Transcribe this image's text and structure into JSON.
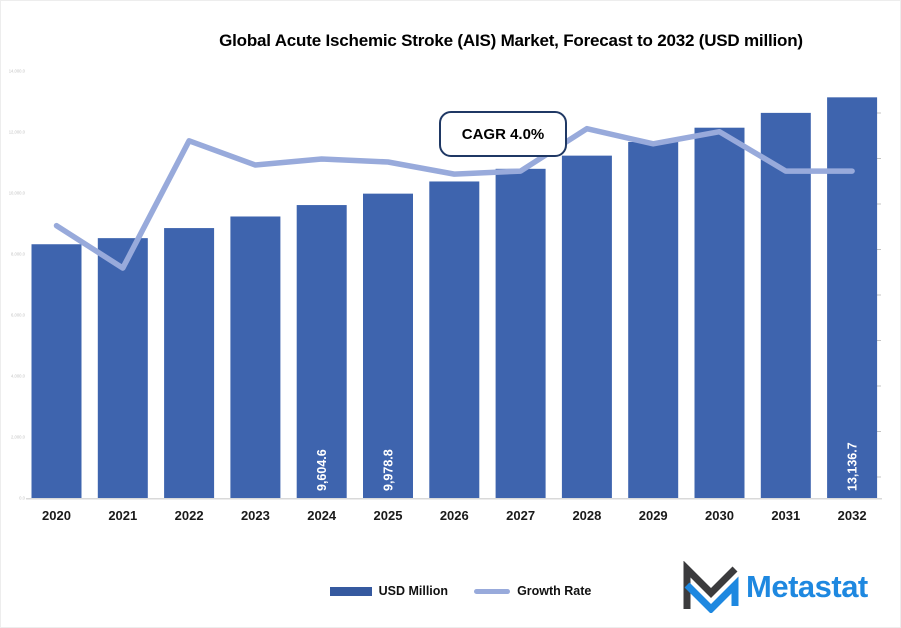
{
  "chart": {
    "title": "Global Acute Ischemic Stroke (AIS) Market, Forecast to 2032 (USD million)",
    "annotation": "CAGR 4.0%"
  },
  "legend": {
    "items": [
      {
        "label": "USD Million",
        "swatch": "bar"
      },
      {
        "label": "Growth Rate",
        "swatch": "line"
      }
    ]
  },
  "branding": {
    "logo_text": "Metastat",
    "logo_icon": "metastat-m-chevrons-icon"
  },
  "colors": {
    "bar": "#3E64AE",
    "line": "#98AADB",
    "legend_bar": "#35599F",
    "annotation_border": "#1F3864",
    "axis_label": "#1a1a1a",
    "faint_axis": "#c4c4c4",
    "baseline": "#d9d9d9",
    "bar_label_text": "#ffffff",
    "logo_blue": "#1E88E0",
    "logo_dark": "#3B3B3D"
  },
  "chart_data": {
    "type": "bar",
    "combo": "bar+line",
    "title": "Global Acute Ischemic Stroke (AIS) Market, Forecast to 2032 (USD million)",
    "annotation": "CAGR 4.0%",
    "categories": [
      "2020",
      "2021",
      "2022",
      "2023",
      "2024",
      "2025",
      "2026",
      "2027",
      "2028",
      "2029",
      "2030",
      "2031",
      "2032"
    ],
    "series": [
      {
        "name": "USD Million",
        "type": "bar",
        "values": [
          8320,
          8520,
          8850,
          9230,
          9604.6,
          9978.8,
          10378,
          10793,
          11225,
          11674,
          12141,
          12627,
          13136.7
        ]
      },
      {
        "name": "Growth Rate",
        "type": "line",
        "unit": "%",
        "values": [
          3.1,
          2.4,
          4.5,
          4.1,
          4.2,
          4.15,
          3.95,
          4.0,
          4.7,
          4.45,
          4.65,
          4.0,
          4.0
        ]
      }
    ],
    "bar_value_labels": [
      "",
      "",
      "",
      "",
      "9,604.6",
      "9,978.8",
      "",
      "",
      "",
      "",
      "",
      "",
      "13,136.7"
    ],
    "xlabel": "",
    "ylabel": "",
    "y_axis": {
      "min": 0,
      "max": 14000,
      "tick_step": 2000,
      "tick_labels": [
        "0.0",
        "2,000.0",
        "4,000.0",
        "6,000.0",
        "8,000.0",
        "10,000.0",
        "12,000.0",
        "14,000.0"
      ],
      "label_style": "very-faint"
    },
    "layout": {
      "grid": false,
      "legend_position": "bottom-center",
      "bar_labels_rotated": true,
      "right_axis_tick_count": 9
    }
  }
}
